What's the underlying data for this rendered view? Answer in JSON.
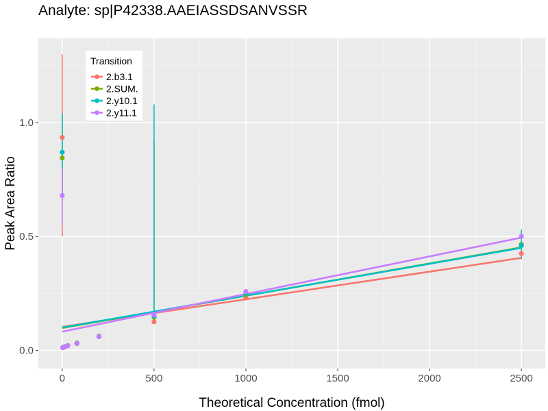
{
  "chart_data": {
    "type": "scatter",
    "title": "Analyte: sp|P42338.AAEIASSDSANVSSR",
    "xlabel": "Theoretical Concentration (fmol)",
    "ylabel": "Peak Area Ratio",
    "xlim": [
      -130,
      2630
    ],
    "ylim": [
      -0.08,
      1.37
    ],
    "x_ticks": [
      0,
      500,
      1000,
      1500,
      2000,
      2500
    ],
    "y_ticks": [
      0.0,
      0.5,
      1.0
    ],
    "x_tick_labels": [
      "0",
      "500",
      "1000",
      "1500",
      "2000",
      "2500"
    ],
    "y_tick_labels": [
      "0.0",
      "0.5",
      "1.0"
    ],
    "grid": true,
    "legend": {
      "title": "Transition",
      "placement": "top-left"
    },
    "series": [
      {
        "name": "2.b3.1",
        "color": "#F8766D",
        "points": [
          {
            "x": 0,
            "y": 0.935
          },
          {
            "x": 3,
            "y": 0.012
          },
          {
            "x": 8,
            "y": 0.014
          },
          {
            "x": 15,
            "y": 0.015
          },
          {
            "x": 30,
            "y": 0.02
          },
          {
            "x": 80,
            "y": 0.03
          },
          {
            "x": 200,
            "y": 0.06
          },
          {
            "x": 500,
            "y": 0.125
          },
          {
            "x": 1000,
            "y": 0.23
          },
          {
            "x": 2500,
            "y": 0.425
          }
        ],
        "error_bars": [
          {
            "x": 0,
            "low": 0.5,
            "high": 1.3
          }
        ],
        "fit": {
          "x": [
            0,
            2500
          ],
          "y": [
            0.103,
            0.406
          ]
        }
      },
      {
        "name": "2.SUM.",
        "color": "#7CAE00",
        "points": [
          {
            "x": 0,
            "y": 0.845
          },
          {
            "x": 3,
            "y": 0.012
          },
          {
            "x": 8,
            "y": 0.013
          },
          {
            "x": 15,
            "y": 0.016
          },
          {
            "x": 30,
            "y": 0.021
          },
          {
            "x": 80,
            "y": 0.032
          },
          {
            "x": 200,
            "y": 0.062
          },
          {
            "x": 500,
            "y": 0.145
          },
          {
            "x": 1000,
            "y": 0.245
          },
          {
            "x": 2500,
            "y": 0.465
          }
        ],
        "error_bars": [
          {
            "x": 0,
            "low": 0.66,
            "high": 1.03
          },
          {
            "x": 500,
            "low": 0.17,
            "high": 0.92
          }
        ],
        "fit": {
          "x": [
            0,
            2500
          ],
          "y": [
            0.098,
            0.452
          ]
        }
      },
      {
        "name": "2.y10.1",
        "color": "#00BFC4",
        "points": [
          {
            "x": 0,
            "y": 0.87
          },
          {
            "x": 3,
            "y": 0.012
          },
          {
            "x": 8,
            "y": 0.014
          },
          {
            "x": 15,
            "y": 0.016
          },
          {
            "x": 30,
            "y": 0.02
          },
          {
            "x": 80,
            "y": 0.03
          },
          {
            "x": 200,
            "y": 0.06
          },
          {
            "x": 500,
            "y": 0.15
          },
          {
            "x": 1000,
            "y": 0.25
          },
          {
            "x": 2500,
            "y": 0.46
          }
        ],
        "error_bars": [
          {
            "x": 0,
            "low": 0.7,
            "high": 1.04
          },
          {
            "x": 500,
            "low": 0.17,
            "high": 1.08
          },
          {
            "x": 2500,
            "low": 0.4,
            "high": 0.53
          }
        ],
        "fit": {
          "x": [
            0,
            2500
          ],
          "y": [
            0.1,
            0.45
          ]
        }
      },
      {
        "name": "2.y11.1",
        "color": "#C77CFF",
        "points": [
          {
            "x": 0,
            "y": 0.68
          },
          {
            "x": 3,
            "y": 0.011
          },
          {
            "x": 8,
            "y": 0.013
          },
          {
            "x": 15,
            "y": 0.015
          },
          {
            "x": 30,
            "y": 0.02
          },
          {
            "x": 80,
            "y": 0.03
          },
          {
            "x": 200,
            "y": 0.06
          },
          {
            "x": 500,
            "y": 0.155
          },
          {
            "x": 1000,
            "y": 0.258
          },
          {
            "x": 2500,
            "y": 0.5
          }
        ],
        "error_bars": [
          {
            "x": 0,
            "low": 0.55,
            "high": 0.8
          }
        ],
        "fit": {
          "x": [
            0,
            2500
          ],
          "y": [
            0.082,
            0.495
          ]
        }
      }
    ]
  }
}
